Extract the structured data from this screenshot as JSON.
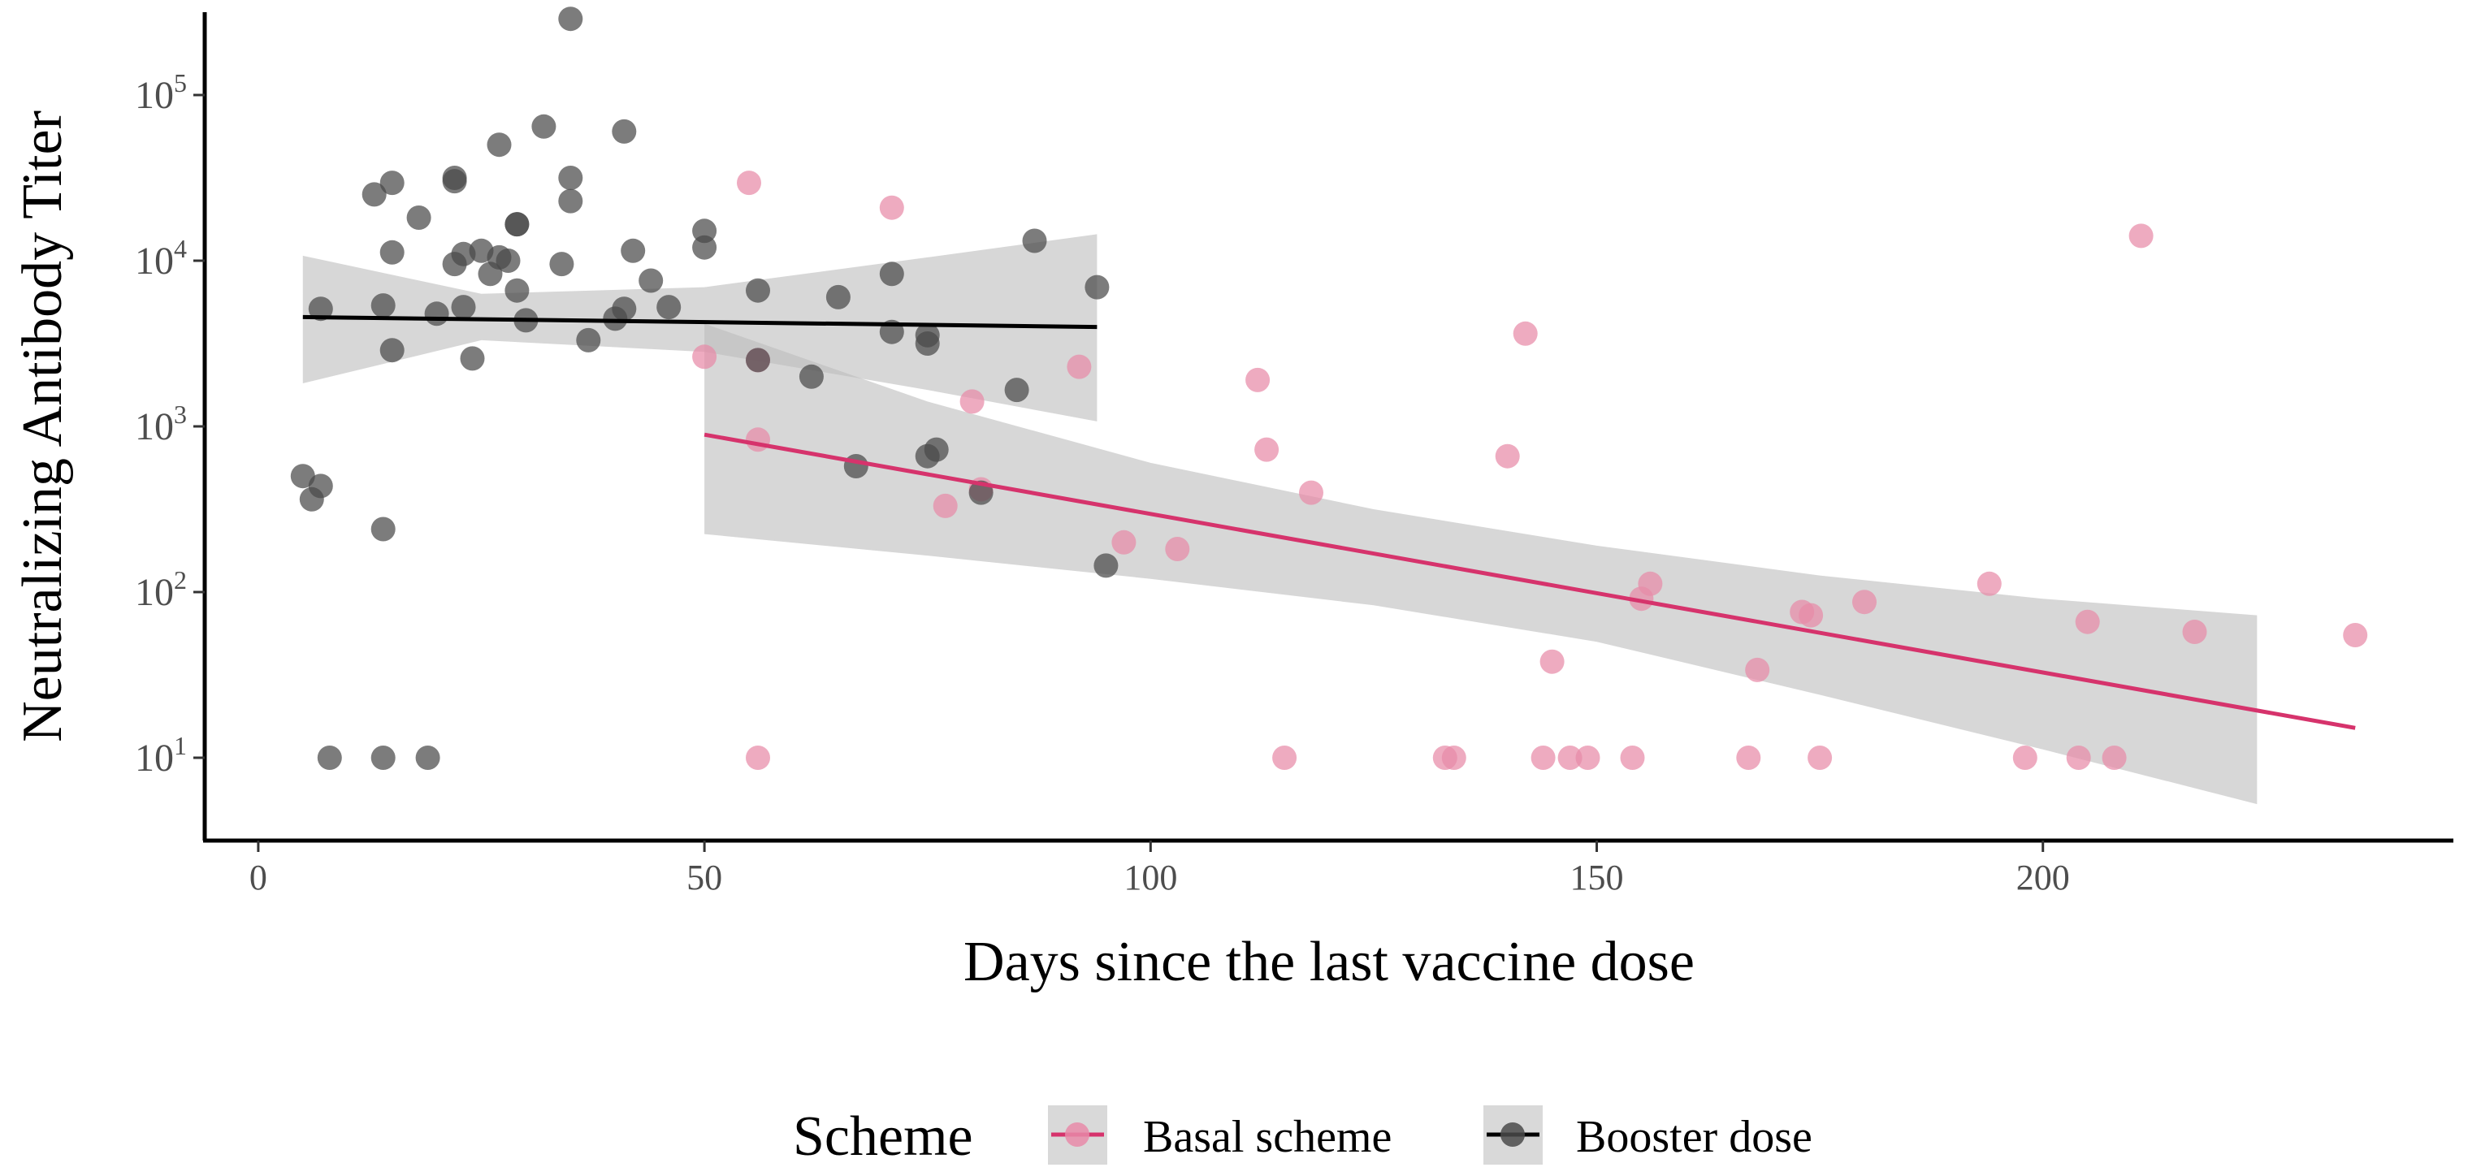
{
  "chart_data": {
    "type": "scatter",
    "ylabel": "Neutralizing Antibody Titer",
    "xlabel": "Days since the last vaccine dose",
    "xlim": [
      -6,
      246
    ],
    "ylim_log10": [
      0.5,
      5.5
    ],
    "y_scale": "log10",
    "x_ticks": [
      {
        "value": 0,
        "label": "0"
      },
      {
        "value": 50,
        "label": "50"
      },
      {
        "value": 100,
        "label": "100"
      },
      {
        "value": 150,
        "label": "150"
      },
      {
        "value": 200,
        "label": "200"
      }
    ],
    "y_ticks": [
      {
        "value": 1,
        "base": "10",
        "exp": "1"
      },
      {
        "value": 2,
        "base": "10",
        "exp": "2"
      },
      {
        "value": 3,
        "base": "10",
        "exp": "3"
      },
      {
        "value": 4,
        "base": "10",
        "exp": "4"
      },
      {
        "value": 5,
        "base": "10",
        "exp": "5"
      }
    ],
    "legend": {
      "title": "Scheme",
      "position": "bottom",
      "entries": [
        {
          "label": "Basal scheme",
          "color": "#d6336c"
        },
        {
          "label": "Booster dose",
          "color": "#000000"
        }
      ]
    },
    "series": [
      {
        "name": "Basal scheme",
        "color": "#d6336c",
        "point_color": "#e78aa8",
        "fit": {
          "x0": 50,
          "y0": 2.95,
          "x1": 235,
          "y1": 1.18
        },
        "band": [
          {
            "x": 50,
            "lo": 2.35,
            "hi": 3.62
          },
          {
            "x": 75,
            "lo": 2.22,
            "hi": 3.15
          },
          {
            "x": 100,
            "lo": 2.08,
            "hi": 2.78
          },
          {
            "x": 125,
            "lo": 1.92,
            "hi": 2.5
          },
          {
            "x": 150,
            "lo": 1.7,
            "hi": 2.28
          },
          {
            "x": 175,
            "lo": 1.38,
            "hi": 2.1
          },
          {
            "x": 200,
            "lo": 1.05,
            "hi": 1.96
          },
          {
            "x": 224,
            "lo": 0.72,
            "hi": 1.86
          }
        ],
        "points": [
          [
            50,
            3.42
          ],
          [
            55,
            4.47
          ],
          [
            56,
            3.4
          ],
          [
            56,
            2.92
          ],
          [
            56,
            1.0
          ],
          [
            71,
            4.32
          ],
          [
            80,
            3.15
          ],
          [
            81,
            2.62
          ],
          [
            77,
            2.52
          ],
          [
            92,
            3.36
          ],
          [
            97,
            2.3
          ],
          [
            103,
            2.26
          ],
          [
            112,
            3.28
          ],
          [
            113,
            2.86
          ],
          [
            115,
            1.0
          ],
          [
            118,
            2.6
          ],
          [
            133,
            1.0
          ],
          [
            134,
            1.0
          ],
          [
            140,
            2.82
          ],
          [
            142,
            3.56
          ],
          [
            144,
            1.0
          ],
          [
            145,
            1.58
          ],
          [
            147,
            1.0
          ],
          [
            149,
            1.0
          ],
          [
            154,
            1.0
          ],
          [
            155,
            1.96
          ],
          [
            156,
            2.05
          ],
          [
            167,
            1.0
          ],
          [
            168,
            1.53
          ],
          [
            173,
            1.88
          ],
          [
            174,
            1.86
          ],
          [
            175,
            1.0
          ],
          [
            180,
            1.94
          ],
          [
            194,
            2.05
          ],
          [
            198,
            1.0
          ],
          [
            204,
            1.0
          ],
          [
            205,
            1.82
          ],
          [
            208,
            1.0
          ],
          [
            211,
            4.15
          ],
          [
            217,
            1.76
          ],
          [
            235,
            1.74
          ]
        ]
      },
      {
        "name": "Booster dose",
        "color": "#000000",
        "point_color": "#4a4a4a",
        "fit": {
          "x0": 5,
          "y0": 3.66,
          "x1": 94,
          "y1": 3.6
        },
        "band": [
          {
            "x": 5,
            "lo": 3.26,
            "hi": 4.03
          },
          {
            "x": 25,
            "lo": 3.52,
            "hi": 3.8
          },
          {
            "x": 50,
            "lo": 3.45,
            "hi": 3.84
          },
          {
            "x": 75,
            "lo": 3.22,
            "hi": 4.02
          },
          {
            "x": 94,
            "lo": 3.03,
            "hi": 4.16
          }
        ],
        "points": [
          [
            5,
            2.7
          ],
          [
            6,
            2.56
          ],
          [
            7,
            2.64
          ],
          [
            7,
            3.71
          ],
          [
            8,
            1.0
          ],
          [
            13,
            4.4
          ],
          [
            14,
            3.73
          ],
          [
            14,
            2.38
          ],
          [
            14,
            1.0
          ],
          [
            15,
            4.47
          ],
          [
            15,
            4.05
          ],
          [
            15,
            3.46
          ],
          [
            18,
            4.26
          ],
          [
            19,
            1.0
          ],
          [
            20,
            3.68
          ],
          [
            22,
            4.5
          ],
          [
            22,
            4.48
          ],
          [
            22,
            3.98
          ],
          [
            23,
            4.04
          ],
          [
            23,
            3.72
          ],
          [
            24,
            3.41
          ],
          [
            25,
            4.06
          ],
          [
            26,
            3.92
          ],
          [
            27,
            4.7
          ],
          [
            27,
            4.02
          ],
          [
            28,
            4.0
          ],
          [
            29,
            4.22
          ],
          [
            29,
            4.22
          ],
          [
            29,
            3.82
          ],
          [
            30,
            3.64
          ],
          [
            32,
            4.81
          ],
          [
            34,
            3.98
          ],
          [
            35,
            5.46
          ],
          [
            35,
            4.5
          ],
          [
            35,
            4.36
          ],
          [
            37,
            3.52
          ],
          [
            40,
            3.65
          ],
          [
            41,
            4.78
          ],
          [
            41,
            3.71
          ],
          [
            42,
            4.06
          ],
          [
            44,
            3.88
          ],
          [
            46,
            3.72
          ],
          [
            50,
            4.18
          ],
          [
            50,
            4.08
          ],
          [
            56,
            3.82
          ],
          [
            56,
            3.4
          ],
          [
            62,
            3.3
          ],
          [
            65,
            3.78
          ],
          [
            67,
            2.76
          ],
          [
            71,
            3.92
          ],
          [
            71,
            3.57
          ],
          [
            75,
            3.55
          ],
          [
            75,
            3.5
          ],
          [
            75,
            2.82
          ],
          [
            76,
            2.86
          ],
          [
            81,
            2.6
          ],
          [
            85,
            3.22
          ],
          [
            87,
            4.12
          ],
          [
            94,
            3.84
          ],
          [
            95,
            2.16
          ]
        ]
      }
    ]
  }
}
